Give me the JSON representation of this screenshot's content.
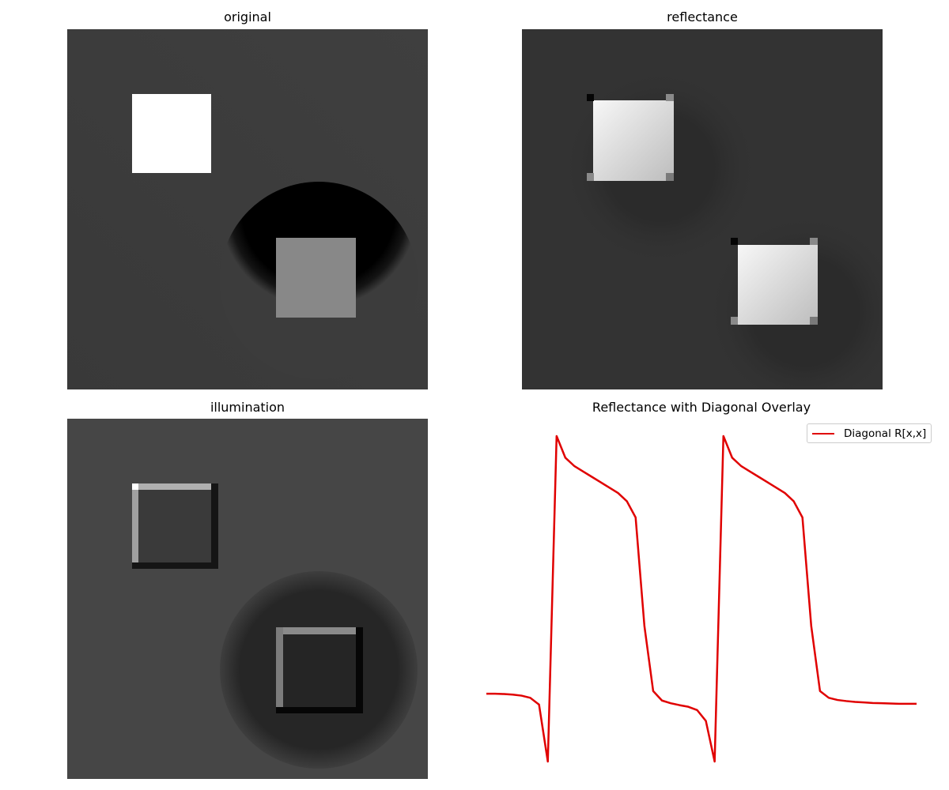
{
  "panels": {
    "original": {
      "title": "original"
    },
    "reflectance": {
      "title": "reflectance"
    },
    "illumination": {
      "title": "illumination"
    },
    "overlay": {
      "title": "Reflectance with Diagonal Overlay"
    }
  },
  "chart_data": [
    {
      "type": "heatmap",
      "title": "original",
      "colormap": "gray",
      "axes": "off"
    },
    {
      "type": "heatmap",
      "title": "reflectance",
      "colormap": "gray",
      "axes": "off"
    },
    {
      "type": "heatmap",
      "title": "illumination",
      "colormap": "gray",
      "axes": "off"
    },
    {
      "type": "line",
      "title": "Reflectance with Diagonal Overlay",
      "axes": "off",
      "legend": "top-right",
      "series": [
        {
          "name": "Diagonal R[x,x]",
          "color": "#e00000",
          "x": [
            0,
            1,
            2,
            3,
            4,
            5,
            6,
            7,
            8,
            9,
            10,
            11,
            12,
            13,
            14,
            15,
            16,
            17,
            18,
            19,
            20,
            21,
            22,
            23,
            24,
            25,
            26,
            27,
            28,
            29,
            30,
            31,
            32,
            33,
            34,
            35,
            36,
            37,
            38,
            39,
            40,
            41,
            42,
            43,
            44,
            45,
            46,
            47,
            48,
            49
          ],
          "y": [
            0.05,
            0.05,
            0.049,
            0.047,
            0.043,
            0.035,
            0.01,
            -0.2,
            1.0,
            0.92,
            0.89,
            0.87,
            0.85,
            0.83,
            0.81,
            0.79,
            0.76,
            0.7,
            0.3,
            0.06,
            0.025,
            0.015,
            0.008,
            0.002,
            -0.01,
            -0.05,
            -0.2,
            1.0,
            0.92,
            0.89,
            0.87,
            0.85,
            0.83,
            0.81,
            0.79,
            0.76,
            0.7,
            0.3,
            0.06,
            0.035,
            0.027,
            0.023,
            0.02,
            0.018,
            0.016,
            0.015,
            0.014,
            0.013,
            0.013,
            0.013
          ]
        }
      ],
      "ylim": [
        -0.2,
        1.0
      ]
    }
  ]
}
